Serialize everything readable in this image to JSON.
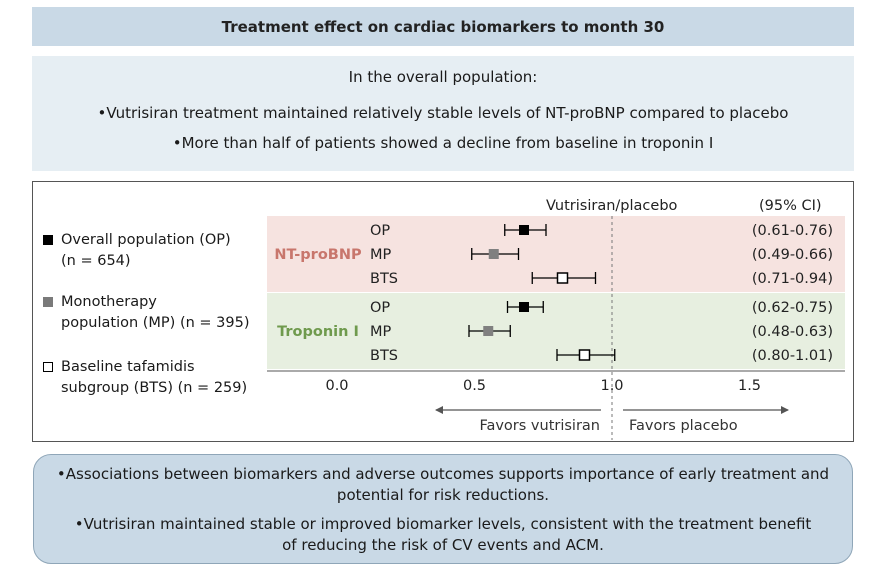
{
  "header": {
    "title": "Treatment effect on cardiac biomarkers to month 30"
  },
  "summary": {
    "heading": "In the overall population:",
    "bullets": [
      "Vutrisiran treatment maintained relatively stable levels of NT-proBNP compared to placebo",
      "More than half of patients showed a decline from baseline in troponin I"
    ]
  },
  "legend": {
    "items": [
      {
        "symbol": "filled-black-square",
        "lines": [
          "Overall population (OP)",
          "(n = 654)"
        ]
      },
      {
        "symbol": "filled-gray-square",
        "lines": [
          "Monotherapy",
          "population (MP) (n = 395)"
        ]
      },
      {
        "symbol": "open-square",
        "lines": [
          "Baseline tafamidis",
          "subgroup (BTS) (n = 259)"
        ]
      }
    ]
  },
  "colors": {
    "ntprobnp_band": "#f6e3e0",
    "troponin_band": "#e7efe0",
    "ntprobnp_label": "#c8766c",
    "troponin_label": "#6f9a4d",
    "op_marker": "#000000",
    "mp_marker": "#808080",
    "bts_marker": "#ffffff"
  },
  "chart_data": {
    "type": "forest",
    "column_header": "Vutrisiran/placebo",
    "ci_header": "(95% CI)",
    "reference_line": 1.0,
    "xlim": [
      0.0,
      1.75
    ],
    "xticks": [
      0.0,
      0.5,
      1.0,
      1.5
    ],
    "xtick_labels": [
      "0.0",
      "0.5",
      "1.0",
      "1.5"
    ],
    "favors_left": "Favors vutrisiran",
    "favors_right": "Favors placebo",
    "groups": [
      {
        "name": "NT-proBNP",
        "rows": [
          {
            "label": "OP",
            "estimate": 0.68,
            "lower": 0.61,
            "upper": 0.76,
            "ci_text": "(0.61-0.76)",
            "marker": "op"
          },
          {
            "label": "MP",
            "estimate": 0.57,
            "lower": 0.49,
            "upper": 0.66,
            "ci_text": "(0.49-0.66)",
            "marker": "mp"
          },
          {
            "label": "BTS",
            "estimate": 0.82,
            "lower": 0.71,
            "upper": 0.94,
            "ci_text": "(0.71-0.94)",
            "marker": "bts"
          }
        ]
      },
      {
        "name": "Troponin I",
        "rows": [
          {
            "label": "OP",
            "estimate": 0.68,
            "lower": 0.62,
            "upper": 0.75,
            "ci_text": "(0.62-0.75)",
            "marker": "op"
          },
          {
            "label": "MP",
            "estimate": 0.55,
            "lower": 0.48,
            "upper": 0.63,
            "ci_text": "(0.48-0.63)",
            "marker": "mp"
          },
          {
            "label": "BTS",
            "estimate": 0.9,
            "lower": 0.8,
            "upper": 1.01,
            "ci_text": "(0.80-1.01)",
            "marker": "bts"
          }
        ]
      }
    ]
  },
  "conclusions": {
    "bullets": [
      [
        "Associations between biomarkers and adverse outcomes supports importance of early treatment and",
        "potential for risk reductions."
      ],
      [
        "Vutrisiran maintained stable or improved biomarker levels, consistent with the treatment benefit",
        "of reducing the risk of CV events and ACM."
      ]
    ]
  }
}
